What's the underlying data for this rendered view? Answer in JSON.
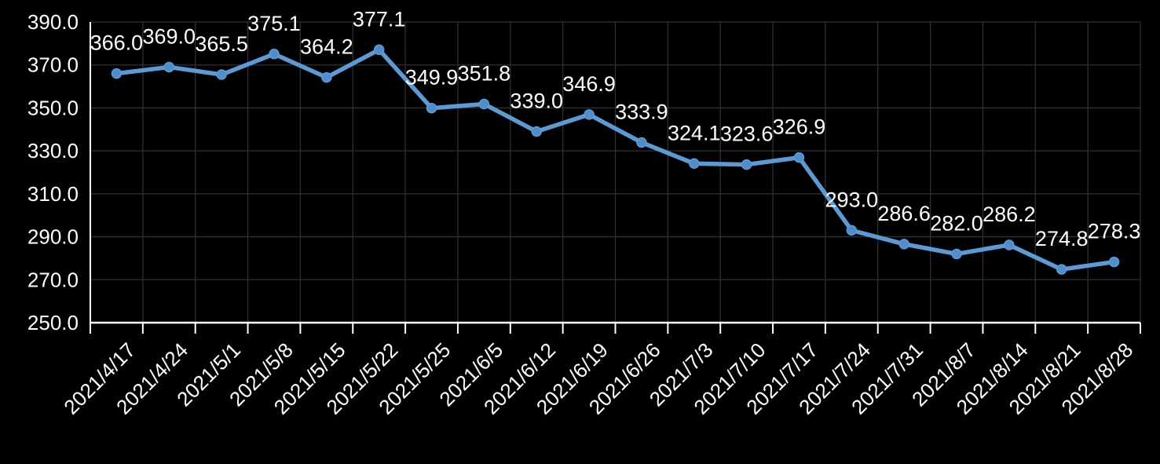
{
  "chart_data": {
    "type": "line",
    "title": "",
    "xlabel": "",
    "ylabel": "",
    "categories": [
      "2021/4/17",
      "2021/4/24",
      "2021/5/1",
      "2021/5/8",
      "2021/5/15",
      "2021/5/22",
      "2021/5/25",
      "2021/6/5",
      "2021/6/12",
      "2021/6/19",
      "2021/6/26",
      "2021/7/3",
      "2021/7/10",
      "2021/7/17",
      "2021/7/24",
      "2021/7/31",
      "2021/8/7",
      "2021/8/14",
      "2021/8/21",
      "2021/8/28"
    ],
    "values": [
      366.0,
      369.0,
      365.5,
      375.1,
      364.2,
      377.1,
      349.9,
      351.8,
      339.0,
      346.9,
      333.9,
      324.1,
      323.6,
      326.9,
      293.0,
      286.6,
      282.0,
      286.2,
      274.8,
      278.3
    ],
    "data_labels_visible": true,
    "value_decimals": 1,
    "ylim": [
      250.0,
      390.0
    ],
    "y_tick_step": 20.0,
    "y_tick_labels": [
      "250.0",
      "270.0",
      "290.0",
      "310.0",
      "330.0",
      "350.0",
      "370.0",
      "390.0"
    ],
    "grid": true,
    "legend": "none",
    "x_label_rotation_deg": -45,
    "colors": {
      "background": "#000000",
      "gridline": "#303030",
      "axis_line": "#ffffff",
      "series_line": "#5b9bd5",
      "marker_fill": "#4f8ecb",
      "label_text": "#ffffff",
      "tick_text": "#ffffff"
    }
  }
}
